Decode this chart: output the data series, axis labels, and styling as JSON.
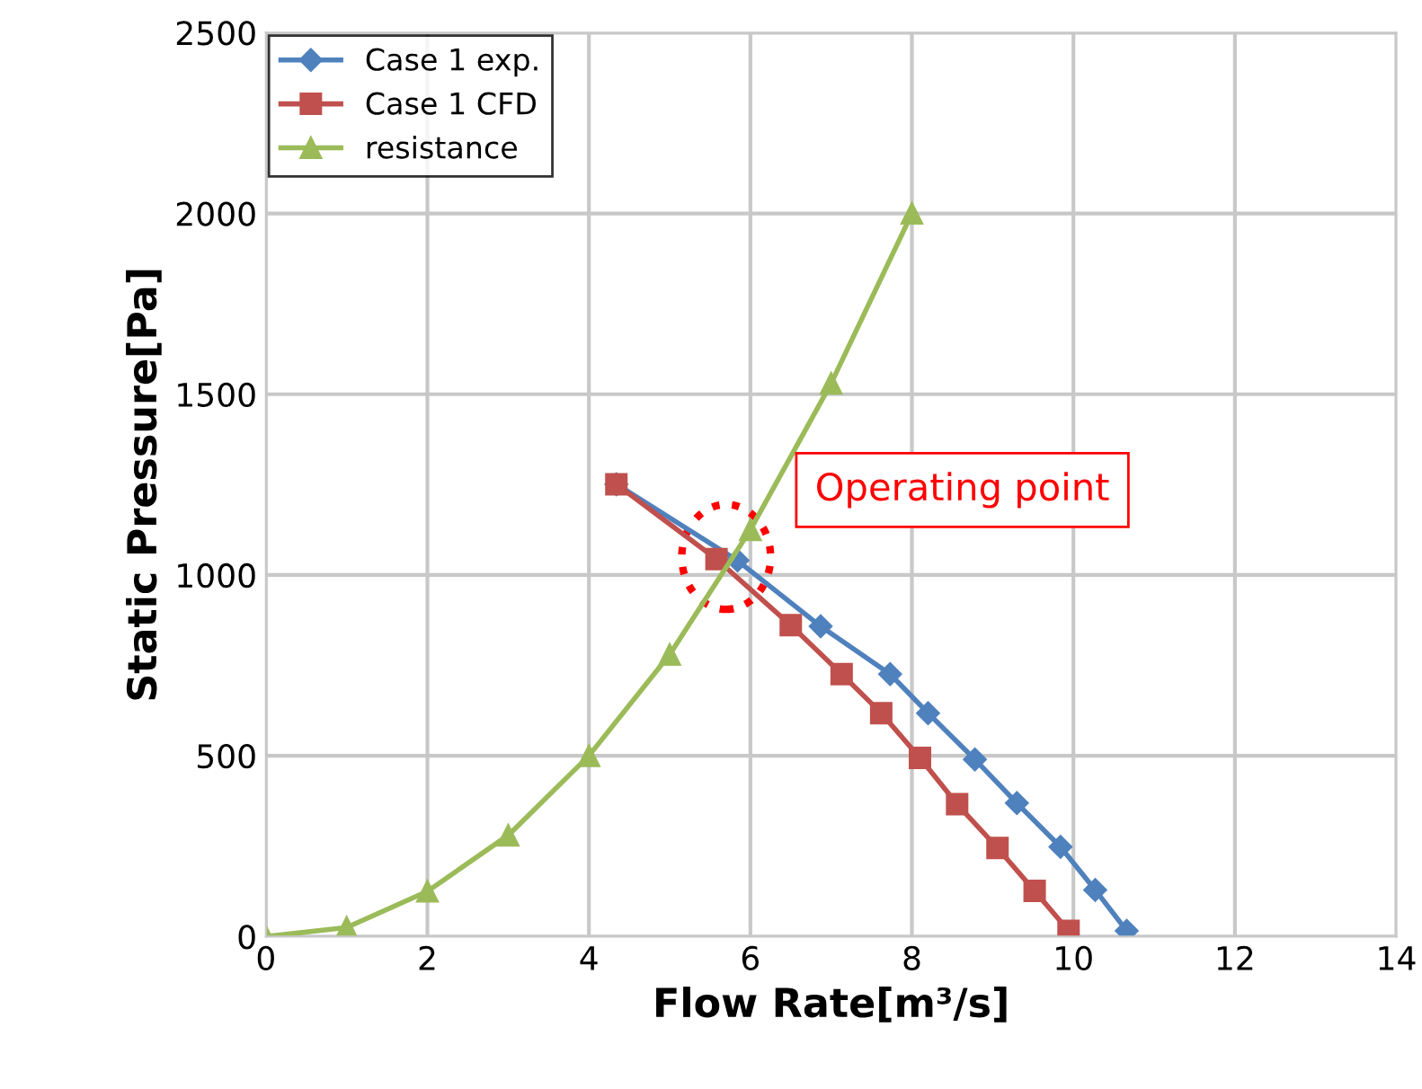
{
  "chart_data": {
    "type": "line",
    "xlabel": "Flow Rate[m³/s]",
    "ylabel": "Static Pressure[Pa]",
    "xlim": [
      0,
      14
    ],
    "xticks": [
      0,
      2,
      4,
      6,
      8,
      10,
      12,
      14
    ],
    "ylim": [
      0,
      2500
    ],
    "yticks": [
      0,
      500,
      1000,
      1500,
      2000,
      2500
    ],
    "grid": true,
    "legend": "top left",
    "series": [
      {
        "name": "Case 1 exp.",
        "color": "#4f81bd",
        "marker": "diamond",
        "x": [
          4.34,
          5.84,
          6.87,
          7.73,
          8.2,
          8.78,
          9.3,
          9.84,
          10.27,
          10.66
        ],
        "values": [
          1251,
          1040,
          858,
          726,
          618,
          490,
          369,
          248,
          129,
          16
        ]
      },
      {
        "name": "Case 1 CFD",
        "color": "#c0504d",
        "marker": "square",
        "x": [
          4.34,
          5.58,
          6.5,
          7.13,
          7.62,
          8.1,
          8.56,
          9.06,
          9.52,
          9.94
        ],
        "values": [
          1251,
          1044,
          861,
          726,
          618,
          494,
          366,
          245,
          126,
          16
        ]
      },
      {
        "name": "resistance",
        "color": "#9bbb59",
        "marker": "triangle",
        "x": [
          0,
          1,
          2,
          3,
          4,
          5,
          6,
          7,
          8
        ],
        "values": [
          0,
          25,
          125,
          280,
          500,
          780,
          1125,
          1530,
          2000
        ]
      }
    ],
    "annotations": [
      {
        "text": "Operating point",
        "x": 5.7,
        "y": 1050
      }
    ]
  }
}
